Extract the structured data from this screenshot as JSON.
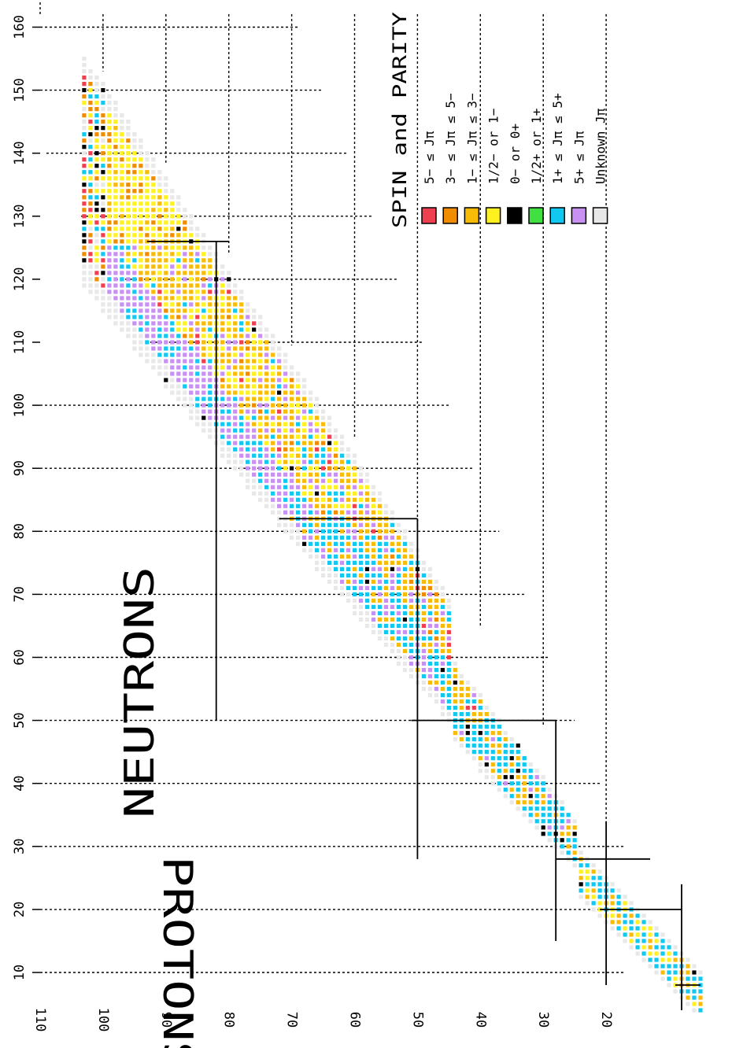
{
  "chart_data": {
    "type": "heatmap",
    "title": "SPIN and PARITY",
    "xlabel": "NEUTRONS",
    "ylabel": "PROTONS",
    "x_ticks": [
      "10",
      "20",
      "30",
      "40",
      "50",
      "60",
      "70",
      "80",
      "90",
      "100",
      "110",
      "120",
      "130",
      "140",
      "150",
      "160"
    ],
    "y_ticks": [
      "20",
      "30",
      "40",
      "50",
      "60",
      "70",
      "80",
      "90",
      "100",
      "110"
    ],
    "xlim": [
      4,
      162
    ],
    "ylim": [
      15,
      113
    ],
    "grid": true,
    "legend_position": "top-right",
    "legend": [
      {
        "label": "5−  ≤  Jπ",
        "color": "#f04050"
      },
      {
        "label": "3−  ≤  Jπ  ≤  5−",
        "color": "#f08c00"
      },
      {
        "label": "1−  ≤  Jπ  ≤  3−",
        "color": "#f8bc08"
      },
      {
        "label": "1/2−  or  1−",
        "color": "#fff020"
      },
      {
        "label": "0−  or  0+",
        "color": "#000000"
      },
      {
        "label": "1/2+  or  1+",
        "color": "#40e040"
      },
      {
        "label": "1+  ≤  Jπ  ≤  5+",
        "color": "#10c8f0"
      },
      {
        "label": "5+  ≤  Jπ",
        "color": "#c890f0"
      },
      {
        "label": "Unknown  Jπ",
        "color": "#e8e8e8"
      }
    ],
    "magic_numbers": [
      8,
      20,
      28,
      50,
      82,
      126
    ]
  }
}
